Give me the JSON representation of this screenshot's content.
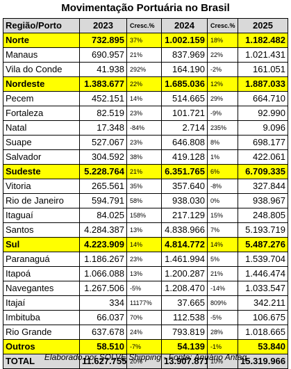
{
  "title": "Movimentação Portuária no Brasil",
  "header": {
    "region_port": "Região/Porto",
    "y2023": "2023",
    "growth1": "Cresc.%",
    "y2024": "2024",
    "growth2": "Cresc.%",
    "y2025": "2025"
  },
  "rows": [
    {
      "name": "Norte",
      "v2023": "732.895",
      "g1": "37%",
      "v2024": "1.002.159",
      "g2": "18%",
      "v2025": "1.182.482"
    },
    {
      "name": "Manaus",
      "v2023": "690.957",
      "g1": "21%",
      "v2024": "837.969",
      "g2": "22%",
      "v2025": "1.021.431"
    },
    {
      "name": "Vila do Conde",
      "v2023": "41.938",
      "g1": "292%",
      "v2024": "164.190",
      "g2": "-2%",
      "v2025": "161.051"
    },
    {
      "name": "Nordeste",
      "v2023": "1.383.677",
      "g1": "22%",
      "v2024": "1.685.036",
      "g2": "12%",
      "v2025": "1.887.033"
    },
    {
      "name": "Pecem",
      "v2023": "452.151",
      "g1": "14%",
      "v2024": "514.665",
      "g2": "29%",
      "v2025": "664.710"
    },
    {
      "name": "Fortaleza",
      "v2023": "82.519",
      "g1": "23%",
      "v2024": "101.721",
      "g2": "-9%",
      "v2025": "92.990"
    },
    {
      "name": "Natal",
      "v2023": "17.348",
      "g1": "-84%",
      "v2024": "2.714",
      "g2": "235%",
      "v2025": "9.096"
    },
    {
      "name": "Suape",
      "v2023": "527.067",
      "g1": "23%",
      "v2024": "646.808",
      "g2": "8%",
      "v2025": "698.177"
    },
    {
      "name": "Salvador",
      "v2023": "304.592",
      "g1": "38%",
      "v2024": "419.128",
      "g2": "1%",
      "v2025": "422.061"
    },
    {
      "name": "Sudeste",
      "v2023": "5.228.764",
      "g1": "21%",
      "v2024": "6.351.765",
      "g2": "6%",
      "v2025": "6.709.335"
    },
    {
      "name": "Vitoria",
      "v2023": "265.561",
      "g1": "35%",
      "v2024": "357.640",
      "g2": "-8%",
      "v2025": "327.844"
    },
    {
      "name": "Rio de Janeiro",
      "v2023": "594.791",
      "g1": "58%",
      "v2024": "938.030",
      "g2": "0%",
      "v2025": "938.967"
    },
    {
      "name": "Itaguaí",
      "v2023": "84.025",
      "g1": "158%",
      "v2024": "217.129",
      "g2": "15%",
      "v2025": "248.805"
    },
    {
      "name": "Santos",
      "v2023": "4.284.387",
      "g1": "13%",
      "v2024": "4.838.966",
      "g2": "7%",
      "v2025": "5.193.719"
    },
    {
      "name": "Sul",
      "v2023": "4.223.909",
      "g1": "14%",
      "v2024": "4.814.772",
      "g2": "14%",
      "v2025": "5.487.276"
    },
    {
      "name": "Paranaguá",
      "v2023": "1.186.267",
      "g1": "23%",
      "v2024": "1.461.994",
      "g2": "5%",
      "v2025": "1.539.704"
    },
    {
      "name": "Itapoá",
      "v2023": "1.066.088",
      "g1": "13%",
      "v2024": "1.200.287",
      "g2": "21%",
      "v2025": "1.446.474"
    },
    {
      "name": "Navegantes",
      "v2023": "1.267.506",
      "g1": "-5%",
      "v2024": "1.208.470",
      "g2": "-14%",
      "v2025": "1.033.547"
    },
    {
      "name": "Itajaí",
      "v2023": "334",
      "g1": "11177%",
      "v2024": "37.665",
      "g2": "809%",
      "v2025": "342.211"
    },
    {
      "name": "Imbituba",
      "v2023": "66.037",
      "g1": "70%",
      "v2024": "112.538",
      "g2": "-5%",
      "v2025": "106.675"
    },
    {
      "name": "Rio Grande",
      "v2023": "637.678",
      "g1": "24%",
      "v2024": "793.819",
      "g2": "28%",
      "v2025": "1.018.665"
    },
    {
      "name": "Outros",
      "v2023": "58.510",
      "g1": "-7%",
      "v2024": "54.139",
      "g2": "-1%",
      "v2025": "53.840"
    },
    {
      "name": "TOTAL",
      "v2023": "11.627.755",
      "g1": "20%",
      "v2024": "13.907.871",
      "g2": "10%",
      "v2025": "15.319.966"
    }
  ],
  "footer": "Elaborado por SOLVE Shipping - Fonte: Anuário Antaq",
  "colors": {
    "region_highlight": "#ffff00",
    "header_bg": "#d9d9d9"
  }
}
